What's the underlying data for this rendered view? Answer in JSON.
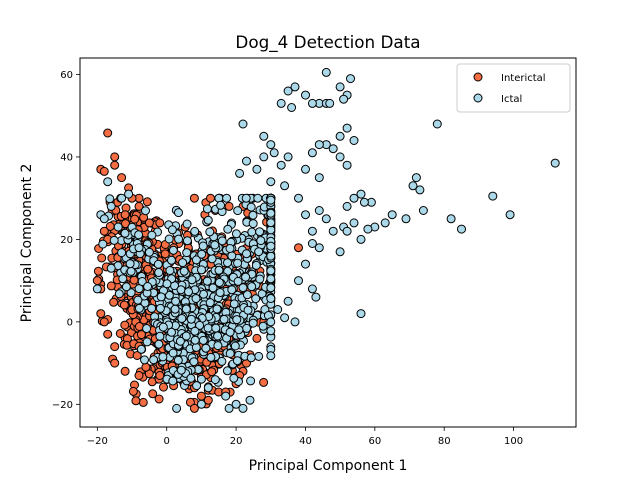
{
  "chart_data": {
    "type": "scatter",
    "title": "Dog_4 Detection Data",
    "xlabel": "Principal Component 1",
    "ylabel": "Principal Component 2",
    "xlim": [
      -25,
      118
    ],
    "ylim": [
      -25.5,
      64
    ],
    "xticks": [
      -20,
      0,
      20,
      40,
      60,
      80,
      100
    ],
    "yticks": [
      -20,
      0,
      20,
      40,
      60
    ],
    "grid": false,
    "legend_position": "top-right",
    "series": [
      {
        "name": "Interictal",
        "color": "#f46d43",
        "clusters": [
          {
            "cx": -4,
            "cy": 6,
            "sx": 6,
            "sy": 7,
            "n": 420
          },
          {
            "cx": 4,
            "cy": -5,
            "sx": 6,
            "sy": 6,
            "n": 300
          },
          {
            "cx": 14,
            "cy": 6,
            "sx": 6,
            "sy": 9,
            "n": 220
          },
          {
            "cx": -10,
            "cy": 20,
            "sx": 4,
            "sy": 6,
            "n": 90
          }
        ],
        "points": [
          [
            -17,
            45.8
          ],
          [
            -15,
            40
          ],
          [
            -15,
            38
          ],
          [
            -13,
            35
          ],
          [
            -11,
            32.5
          ],
          [
            -10,
            30
          ],
          [
            -8,
            28
          ],
          [
            -12,
            26
          ],
          [
            -19,
            37
          ],
          [
            -18,
            36.5
          ],
          [
            -18,
            22
          ],
          [
            -17,
            20
          ],
          [
            -20,
            10
          ],
          [
            -19,
            8
          ],
          [
            -19,
            2
          ],
          [
            -18,
            0
          ],
          [
            -17,
            -3
          ],
          [
            -15,
            -6
          ],
          [
            -15,
            -10
          ],
          [
            -12,
            -12
          ],
          [
            -8,
            -13
          ],
          [
            -6,
            -11
          ],
          [
            -2,
            -13
          ],
          [
            2,
            -12
          ],
          [
            5,
            -15
          ],
          [
            8,
            -16
          ],
          [
            10,
            -18
          ],
          [
            12,
            -19
          ],
          [
            15,
            -17
          ],
          [
            17,
            -17
          ],
          [
            20,
            -15
          ],
          [
            22,
            -12
          ],
          [
            24,
            -8
          ],
          [
            26,
            -4
          ],
          [
            28,
            0
          ],
          [
            21,
            -13
          ],
          [
            19,
            -8
          ],
          [
            23,
            -10
          ],
          [
            38,
            18
          ],
          [
            30,
            18
          ],
          [
            22,
            28
          ],
          [
            18,
            28
          ],
          [
            14,
            27
          ],
          [
            11,
            26
          ],
          [
            6,
            21
          ],
          [
            2,
            18
          ],
          [
            -5,
            24
          ],
          [
            -2,
            24
          ]
        ]
      },
      {
        "name": "Ictal",
        "color": "#abd9e9",
        "clusters": [
          {
            "cx": 12,
            "cy": 5,
            "sx": 7,
            "sy": 9,
            "n": 380
          },
          {
            "cx": 26,
            "cy": 12,
            "sx": 7,
            "sy": 10,
            "n": 170
          },
          {
            "cx": 3,
            "cy": -2,
            "sx": 5,
            "sy": 7,
            "n": 180
          },
          {
            "cx": 38,
            "cy": 30,
            "sx": 6,
            "sy": 10,
            "n": 70
          },
          {
            "cx": -8,
            "cy": 15,
            "sx": 4,
            "sy": 6,
            "n": 70
          }
        ],
        "points": [
          [
            46,
            60.5
          ],
          [
            53,
            59
          ],
          [
            52,
            55
          ],
          [
            50,
            57
          ],
          [
            51,
            54
          ],
          [
            44,
            53
          ],
          [
            42,
            53
          ],
          [
            40,
            55
          ],
          [
            37,
            57
          ],
          [
            36,
            52
          ],
          [
            35,
            56
          ],
          [
            46,
            53
          ],
          [
            47,
            53
          ],
          [
            33,
            53
          ],
          [
            46,
            43
          ],
          [
            44,
            43
          ],
          [
            42,
            41
          ],
          [
            48,
            42
          ],
          [
            52,
            47
          ],
          [
            50,
            45
          ],
          [
            54,
            44
          ],
          [
            50,
            40
          ],
          [
            52,
            38
          ],
          [
            78,
            48
          ],
          [
            112,
            38.5
          ],
          [
            94,
            30.5
          ],
          [
            99,
            26
          ],
          [
            72,
            35
          ],
          [
            71,
            33
          ],
          [
            73,
            32
          ],
          [
            82,
            25
          ],
          [
            85,
            22.5
          ],
          [
            74,
            27
          ],
          [
            69,
            25
          ],
          [
            65,
            26
          ],
          [
            63,
            24
          ],
          [
            60,
            23
          ],
          [
            58,
            22.5
          ],
          [
            59,
            29
          ],
          [
            57,
            29
          ],
          [
            56,
            31
          ],
          [
            54,
            30
          ],
          [
            52,
            28
          ],
          [
            51,
            23
          ],
          [
            52,
            22
          ],
          [
            54,
            24
          ],
          [
            56,
            20
          ],
          [
            46,
            25
          ],
          [
            48,
            22
          ],
          [
            50,
            17
          ],
          [
            44,
            18
          ],
          [
            42,
            19
          ],
          [
            44,
            27
          ],
          [
            40,
            26
          ],
          [
            42,
            22
          ],
          [
            38,
            30
          ],
          [
            44,
            35
          ],
          [
            40,
            37
          ],
          [
            34,
            33
          ],
          [
            30,
            34
          ],
          [
            35,
            40
          ],
          [
            33,
            38
          ],
          [
            31,
            41
          ],
          [
            28,
            45
          ],
          [
            30,
            43
          ],
          [
            28,
            40
          ],
          [
            26,
            37
          ],
          [
            23,
            39
          ],
          [
            21,
            36
          ],
          [
            22,
            48
          ],
          [
            56,
            2
          ],
          [
            43,
            6
          ],
          [
            42,
            8
          ],
          [
            37,
            0
          ],
          [
            35,
            5
          ],
          [
            30,
            0
          ],
          [
            32,
            3
          ],
          [
            34,
            1
          ],
          [
            40,
            14
          ],
          [
            38,
            10
          ],
          [
            20,
            -20
          ],
          [
            22,
            -21
          ],
          [
            18,
            -21
          ],
          [
            24,
            -19
          ],
          [
            14,
            -14
          ],
          [
            12,
            -16
          ],
          [
            10,
            -20
          ],
          [
            17,
            -18
          ],
          [
            -8,
            18
          ],
          [
            -13,
            30
          ],
          [
            -11,
            31
          ],
          [
            -17,
            34
          ],
          [
            -16,
            28
          ],
          [
            -19,
            26
          ],
          [
            -18,
            25
          ],
          [
            -14,
            23
          ],
          [
            -16,
            13
          ],
          [
            -20,
            8
          ]
        ]
      }
    ]
  }
}
